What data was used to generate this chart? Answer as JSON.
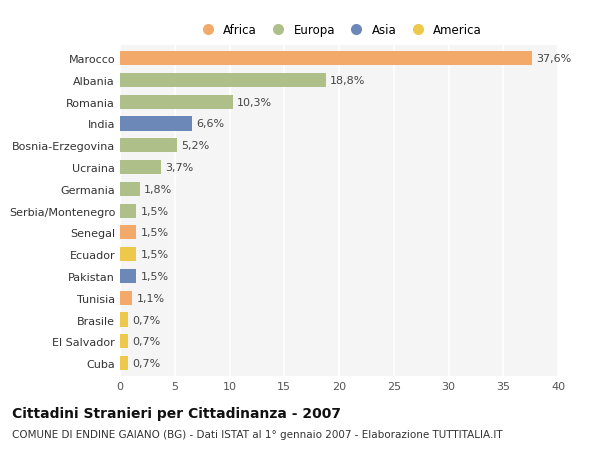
{
  "countries": [
    "Marocco",
    "Albania",
    "Romania",
    "India",
    "Bosnia-Erzegovina",
    "Ucraina",
    "Germania",
    "Serbia/Montenegro",
    "Senegal",
    "Ecuador",
    "Pakistan",
    "Tunisia",
    "Brasile",
    "El Salvador",
    "Cuba"
  ],
  "values": [
    37.6,
    18.8,
    10.3,
    6.6,
    5.2,
    3.7,
    1.8,
    1.5,
    1.5,
    1.5,
    1.5,
    1.1,
    0.7,
    0.7,
    0.7
  ],
  "labels": [
    "37,6%",
    "18,8%",
    "10,3%",
    "6,6%",
    "5,2%",
    "3,7%",
    "1,8%",
    "1,5%",
    "1,5%",
    "1,5%",
    "1,5%",
    "1,1%",
    "0,7%",
    "0,7%",
    "0,7%"
  ],
  "continents": [
    "Africa",
    "Europa",
    "Europa",
    "Asia",
    "Europa",
    "Europa",
    "Europa",
    "Europa",
    "Africa",
    "America",
    "Asia",
    "Africa",
    "America",
    "America",
    "America"
  ],
  "colors": {
    "Africa": "#F2A96A",
    "Europa": "#AFBF8A",
    "Asia": "#6B88B8",
    "America": "#EEC84A"
  },
  "xlim": [
    0,
    40
  ],
  "xticks": [
    0,
    5,
    10,
    15,
    20,
    25,
    30,
    35,
    40
  ],
  "title": "Cittadini Stranieri per Cittadinanza - 2007",
  "subtitle": "COMUNE DI ENDINE GAIANO (BG) - Dati ISTAT al 1° gennaio 2007 - Elaborazione TUTTITALIA.IT",
  "bg_color": "#ffffff",
  "plot_bg_color": "#f5f5f5",
  "grid_color": "#ffffff",
  "bar_height": 0.65,
  "label_fontsize": 8,
  "title_fontsize": 10,
  "subtitle_fontsize": 7.5,
  "tick_fontsize": 8
}
